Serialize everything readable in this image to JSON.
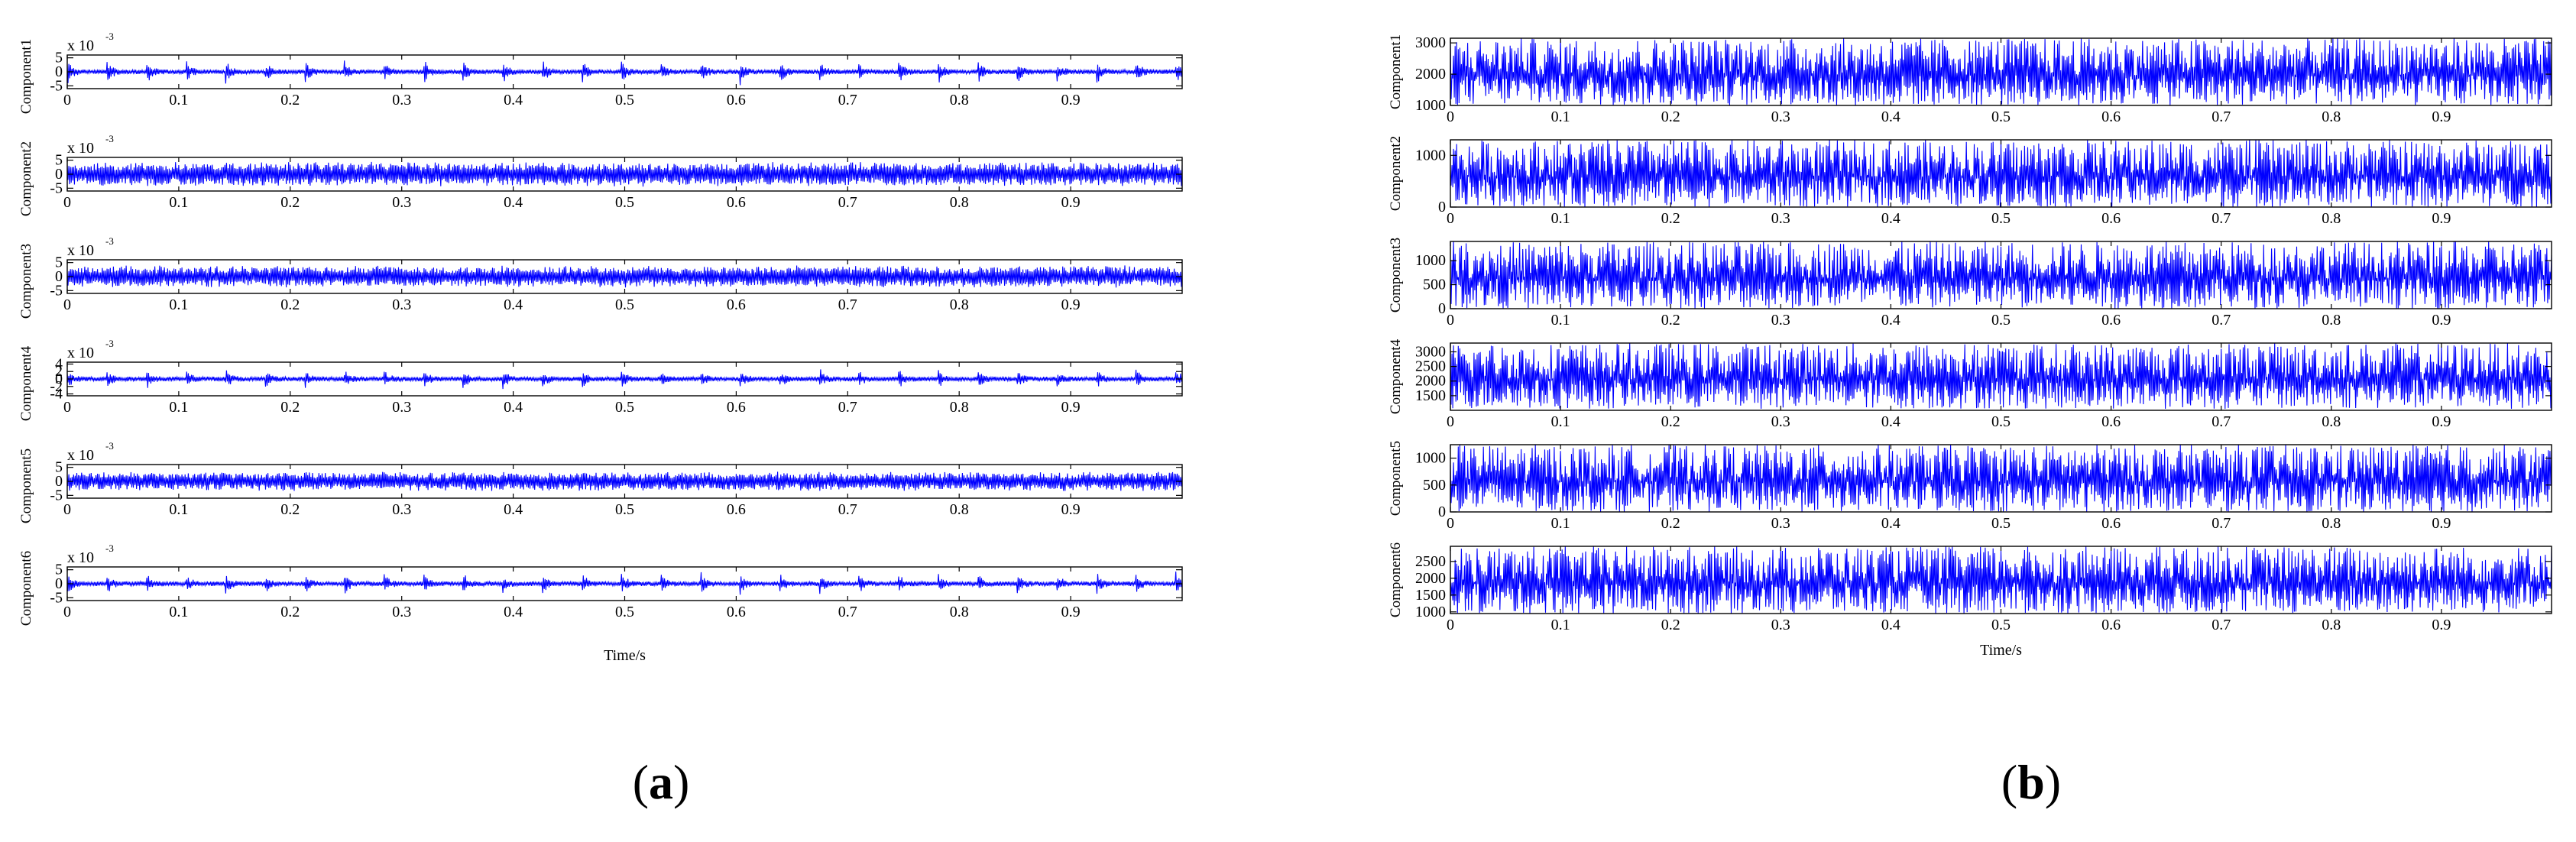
{
  "chart_data": [
    {
      "panel": "a",
      "panel_label_text": {
        "open": "(",
        "letter": "a",
        "close": ")"
      },
      "type": "line",
      "x_label": "Time/s",
      "x_range": [
        0,
        1
      ],
      "x_ticks": [
        0,
        0.1,
        0.2,
        0.3,
        0.4,
        0.5,
        0.6,
        0.7,
        0.8,
        0.9
      ],
      "x_tick_labels": [
        "0",
        "0.1",
        "0.2",
        "0.3",
        "0.4",
        "0.5",
        "0.6",
        "0.7",
        "0.8",
        "0.9"
      ],
      "line_color": "#0000ff",
      "series": [
        {
          "name": "Component1",
          "exponent_prefix": "x 10",
          "exponent": "-3",
          "ylim": [
            -6,
            6
          ],
          "y_ticks": [
            -5,
            0,
            5
          ],
          "y_tick_labels": [
            "-5",
            "0",
            "5"
          ],
          "base_amplitude": 0.8,
          "peak_amplitude": 5.5,
          "impulsive": true,
          "impulse_period": 0.0355
        },
        {
          "name": "Component2",
          "exponent_prefix": "x 10",
          "exponent": "-3",
          "ylim": [
            -6,
            6
          ],
          "y_ticks": [
            -5,
            0,
            5
          ],
          "y_tick_labels": [
            "-5",
            "0",
            "5"
          ],
          "base_amplitude": 4.5,
          "peak_amplitude": 5.5,
          "impulsive": false
        },
        {
          "name": "Component3",
          "exponent_prefix": "x 10",
          "exponent": "-3",
          "ylim": [
            -6,
            6
          ],
          "y_ticks": [
            -5,
            0,
            5
          ],
          "y_tick_labels": [
            "-5",
            "0",
            "5"
          ],
          "base_amplitude": 4.0,
          "peak_amplitude": 5.5,
          "impulsive": false
        },
        {
          "name": "Component4",
          "exponent_prefix": "x 10",
          "exponent": "-3",
          "ylim": [
            -4.5,
            4.5
          ],
          "y_ticks": [
            -4,
            -2,
            0,
            2,
            4
          ],
          "y_tick_labels": [
            "-4",
            "-2",
            "0",
            "2",
            "4"
          ],
          "base_amplitude": 0.6,
          "peak_amplitude": 3.5,
          "impulsive": true,
          "impulse_period": 0.0355
        },
        {
          "name": "Component5",
          "exponent_prefix": "x 10",
          "exponent": "-3",
          "ylim": [
            -6,
            6
          ],
          "y_ticks": [
            -5,
            0,
            5
          ],
          "y_tick_labels": [
            "-5",
            "0",
            "5"
          ],
          "base_amplitude": 3.5,
          "peak_amplitude": 5.0,
          "impulsive": false
        },
        {
          "name": "Component6",
          "exponent_prefix": "x 10",
          "exponent": "-3",
          "ylim": [
            -6,
            6
          ],
          "y_ticks": [
            -5,
            0,
            5
          ],
          "y_tick_labels": [
            "-5",
            "0",
            "5"
          ],
          "base_amplitude": 0.8,
          "peak_amplitude": 5.0,
          "impulsive": true,
          "impulse_period": 0.0355
        }
      ]
    },
    {
      "panel": "b",
      "panel_label_text": {
        "open": "(",
        "letter": "b",
        "close": ")"
      },
      "type": "line",
      "x_label": "Time/s",
      "x_range": [
        0,
        1
      ],
      "x_ticks": [
        0,
        0.1,
        0.2,
        0.3,
        0.4,
        0.5,
        0.6,
        0.7,
        0.8,
        0.9
      ],
      "x_tick_labels": [
        "0",
        "0.1",
        "0.2",
        "0.3",
        "0.4",
        "0.5",
        "0.6",
        "0.7",
        "0.8",
        "0.9"
      ],
      "line_color": "#0000ff",
      "series": [
        {
          "name": "Component1",
          "ylim": [
            1000,
            3150
          ],
          "y_ticks": [
            1000,
            2000,
            3000
          ],
          "y_tick_labels": [
            "1000",
            "2000",
            "3000"
          ],
          "low": 1000,
          "high": 3150
        },
        {
          "name": "Component2",
          "ylim": [
            0,
            1300
          ],
          "y_ticks": [
            0,
            1000
          ],
          "y_tick_labels": [
            "0",
            "1000"
          ],
          "low": 0,
          "high": 1300
        },
        {
          "name": "Component3",
          "ylim": [
            0,
            1400
          ],
          "y_ticks": [
            0,
            500,
            1000
          ],
          "y_tick_labels": [
            "0",
            "500",
            "1000"
          ],
          "low": 0,
          "high": 1400
        },
        {
          "name": "Component4",
          "ylim": [
            1000,
            3300
          ],
          "y_ticks": [
            1500,
            2000,
            2500,
            3000
          ],
          "y_tick_labels": [
            "1500",
            "2000",
            "2500",
            "3000"
          ],
          "low": 1050,
          "high": 3300
        },
        {
          "name": "Component5",
          "ylim": [
            0,
            1250
          ],
          "y_ticks": [
            0,
            500,
            1000
          ],
          "y_tick_labels": [
            "0",
            "500",
            "1000"
          ],
          "low": 0,
          "high": 1250
        },
        {
          "name": "Component6",
          "ylim": [
            950,
            2950
          ],
          "y_ticks": [
            1000,
            1500,
            2000,
            2500
          ],
          "y_tick_labels": [
            "1000",
            "1500",
            "2000",
            "2500"
          ],
          "low": 950,
          "high": 2950
        }
      ]
    }
  ]
}
